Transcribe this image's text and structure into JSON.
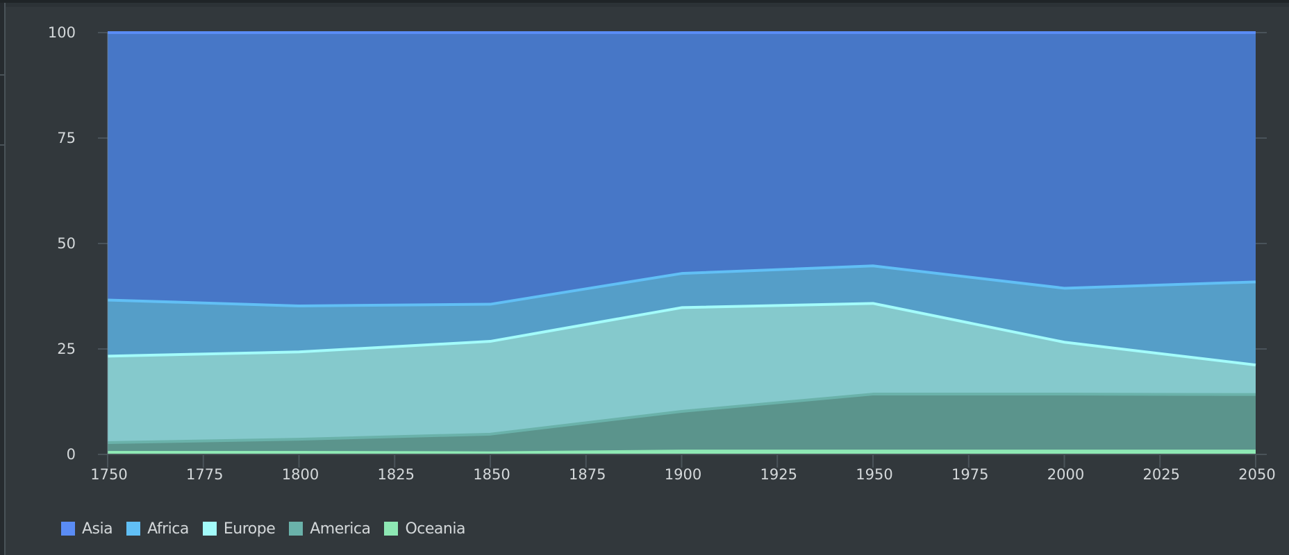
{
  "chart_data": {
    "type": "area",
    "stacked": true,
    "normalized_percent": true,
    "title": "",
    "xlabel": "",
    "ylabel": "",
    "x": [
      1750,
      1800,
      1850,
      1900,
      1950,
      2000,
      2050
    ],
    "x_ticks": [
      1750,
      1775,
      1800,
      1825,
      1850,
      1875,
      1900,
      1925,
      1950,
      1975,
      2000,
      2025,
      2050
    ],
    "y_ticks": [
      0,
      25,
      50,
      75,
      100
    ],
    "ylim": [
      0,
      100
    ],
    "xlim": [
      1750,
      2050
    ],
    "grid": "horizontal",
    "legend_position": "bottom-left",
    "series": [
      {
        "name": "Asia",
        "color": "#5a8cf5",
        "fill": "#4777c7",
        "values": [
          63.4,
          64.8,
          64.4,
          57.1,
          55.3,
          60.6,
          59.1
        ]
      },
      {
        "name": "Africa",
        "color": "#61bff5",
        "fill": "#559ec8",
        "values": [
          13.3,
          10.9,
          8.8,
          8.1,
          8.9,
          12.8,
          19.7
        ]
      },
      {
        "name": "Europe",
        "color": "#a3fbfa",
        "fill": "#85c9cc",
        "values": [
          20.5,
          20.7,
          22.0,
          24.6,
          21.5,
          12.3,
          7.0
        ]
      },
      {
        "name": "America",
        "color": "#6ab2aa",
        "fill": "#5b948c",
        "values": [
          2.3,
          3.1,
          4.4,
          9.4,
          13.5,
          13.5,
          13.4
        ]
      },
      {
        "name": "Oceania",
        "color": "#8ee8b4",
        "fill": "#8ee8b4",
        "values": [
          0.5,
          0.5,
          0.4,
          0.8,
          0.8,
          0.8,
          0.8
        ]
      }
    ]
  },
  "legend": {
    "items": [
      {
        "label": "Asia",
        "color": "#5a8cf5"
      },
      {
        "label": "Africa",
        "color": "#61bff5"
      },
      {
        "label": "Europe",
        "color": "#a3fbfa"
      },
      {
        "label": "America",
        "color": "#6ab2aa"
      },
      {
        "label": "Oceania",
        "color": "#8ee8b4"
      }
    ]
  }
}
